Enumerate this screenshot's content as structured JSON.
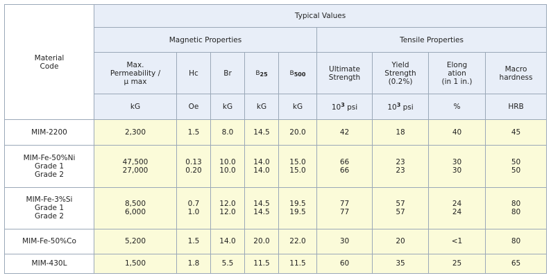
{
  "header": {
    "material_code": "Material\nCode",
    "typical_values": "Typical Values",
    "magnetic_properties": "Magnetic Properties",
    "tensile_properties": "Tensile Properties",
    "columns": {
      "max_perm": "Max.\nPermeability /\nμ max",
      "hc": "Hc",
      "br": "Br",
      "b25_base": "B",
      "b25_sub": "25",
      "b500_base": "B",
      "b500_sub": "500",
      "ultimate": "Ultimate\nStrength",
      "yield": "Yield\nStrength\n(0.2%)",
      "elongation": "Elong\nation\n(in 1 in.)",
      "macro": "Macro\nhardness"
    },
    "units": {
      "max_perm": "kG",
      "hc": "Oe",
      "br": "kG",
      "b25": "kG",
      "b500": "kG",
      "ultimate_base": "10",
      "ultimate_sup": "3",
      "ultimate_rest": " psi",
      "yield_base": "10",
      "yield_sup": "3",
      "yield_rest": " psi",
      "elongation": "%",
      "macro": "HRB"
    }
  },
  "rows": [
    {
      "code": "MIM-2200",
      "max_perm": "2,300",
      "hc": "1.5",
      "br": "8.0",
      "b25": "14.5",
      "b500": "20.0",
      "ultimate": "42",
      "yield": "18",
      "elongation": "40",
      "macro": "45"
    },
    {
      "code": "MIM-Fe-50%Ni\nGrade 1\nGrade 2",
      "max_perm": "47,500\n27,000",
      "hc": "0.13\n0.20",
      "br": "10.0\n10.0",
      "b25": "14.0\n14.0",
      "b500": "15.0\n15.0",
      "ultimate": "66\n66",
      "yield": "23\n23",
      "elongation": "30\n30",
      "macro": "50\n50"
    },
    {
      "code": "MIM-Fe-3%Si\nGrade 1\nGrade 2",
      "max_perm": "8,500\n6,000",
      "hc": "0.7\n1.0",
      "br": "12.0\n12.0",
      "b25": "14.5\n14.5",
      "b500": "19.5\n19.5",
      "ultimate": "77\n77",
      "yield": "57\n57",
      "elongation": "24\n24",
      "macro": "80\n80"
    },
    {
      "code": "MIM-Fe-50%Co",
      "max_perm": "5,200",
      "hc": "1.5",
      "br": "14.0",
      "b25": "20.0",
      "b500": "22.0",
      "ultimate": "30",
      "yield": "20",
      "elongation": "<1",
      "macro": "80"
    },
    {
      "code": "MIM-430L",
      "max_perm": "1,500",
      "hc": "1.8",
      "br": "5.5",
      "b25": "11.5",
      "b500": "11.5",
      "ultimate": "60",
      "yield": "35",
      "elongation": "25",
      "macro": "65"
    }
  ]
}
